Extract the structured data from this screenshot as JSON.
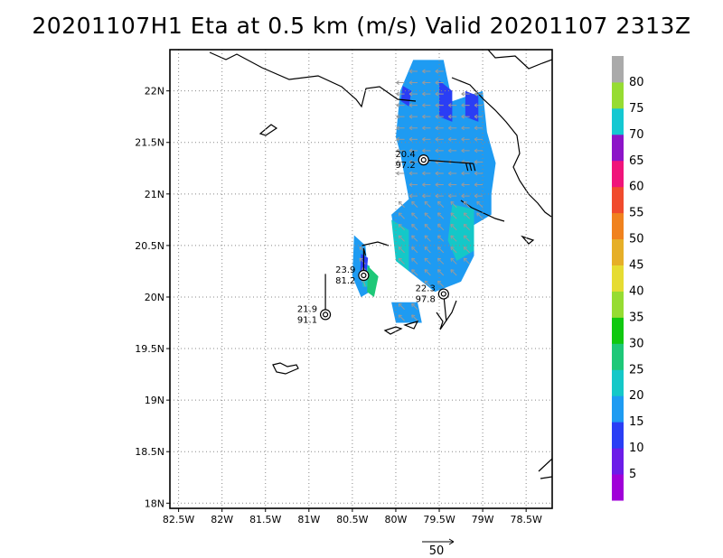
{
  "chart_data": {
    "type": "heatmap",
    "title": "20201107H1 Eta at 0.5 km (m/s) Valid 20201107  2313Z",
    "xlim": [
      -82.6,
      -78.2
    ],
    "ylim": [
      17.95,
      22.4
    ],
    "x_ticks": [
      {
        "value": -82.5,
        "label": "82.5W"
      },
      {
        "value": -82.0,
        "label": "82W"
      },
      {
        "value": -81.5,
        "label": "81.5W"
      },
      {
        "value": -81.0,
        "label": "81W"
      },
      {
        "value": -80.5,
        "label": "80.5W"
      },
      {
        "value": -80.0,
        "label": "80W"
      },
      {
        "value": -79.5,
        "label": "79.5W"
      },
      {
        "value": -79.0,
        "label": "79W"
      },
      {
        "value": -78.5,
        "label": "78.5W"
      }
    ],
    "y_ticks": [
      {
        "value": 18.0,
        "label": "18N"
      },
      {
        "value": 18.5,
        "label": "18.5N"
      },
      {
        "value": 19.0,
        "label": "19N"
      },
      {
        "value": 19.5,
        "label": "19.5N"
      },
      {
        "value": 20.0,
        "label": "20N"
      },
      {
        "value": 20.5,
        "label": "20.5N"
      },
      {
        "value": 21.0,
        "label": "21N"
      },
      {
        "value": 21.5,
        "label": "21.5N"
      },
      {
        "value": 22.0,
        "label": "22N"
      }
    ],
    "grid": true,
    "colorbar": {
      "bins": [
        {
          "max": 5,
          "color": "#a000d8"
        },
        {
          "max": 10,
          "color": "#6c1ce8"
        },
        {
          "max": 15,
          "color": "#2a3ef5"
        },
        {
          "max": 20,
          "color": "#1e9bf2"
        },
        {
          "max": 25,
          "color": "#14c8c8"
        },
        {
          "max": 30,
          "color": "#1ec878"
        },
        {
          "max": 35,
          "color": "#10c810"
        },
        {
          "max": 40,
          "color": "#96dc32"
        },
        {
          "max": 45,
          "color": "#e6dc32"
        },
        {
          "max": 50,
          "color": "#e6af28"
        },
        {
          "max": 55,
          "color": "#f0821e"
        },
        {
          "max": 60,
          "color": "#f04b2d"
        },
        {
          "max": 65,
          "color": "#f0147a"
        },
        {
          "max": 70,
          "color": "#8c14c8"
        },
        {
          "max": 75,
          "color": "#14c8d2"
        },
        {
          "max": 80,
          "color": "#96dc32"
        },
        {
          "max": 85,
          "color": "#aaaaaa"
        }
      ],
      "labels": [
        "5",
        "10",
        "15",
        "20",
        "25",
        "30",
        "35",
        "40",
        "45",
        "50",
        "55",
        "60",
        "65",
        "70",
        "75",
        "80"
      ]
    },
    "wind_field_regions": [
      {
        "level": 17,
        "polygon": [
          [
            -79.8,
            22.3
          ],
          [
            -79.45,
            22.3
          ],
          [
            -79.35,
            21.9
          ],
          [
            -79.0,
            22.0
          ],
          [
            -78.95,
            21.6
          ],
          [
            -78.85,
            21.3
          ],
          [
            -78.9,
            21.0
          ],
          [
            -78.9,
            20.8
          ],
          [
            -79.1,
            20.7
          ],
          [
            -79.1,
            20.4
          ],
          [
            -79.25,
            20.15
          ],
          [
            -79.55,
            20.05
          ],
          [
            -79.85,
            20.25
          ],
          [
            -80.0,
            20.55
          ],
          [
            -80.05,
            20.8
          ],
          [
            -79.85,
            20.95
          ],
          [
            -79.95,
            21.4
          ],
          [
            -80.0,
            21.55
          ],
          [
            -79.95,
            22.0
          ]
        ]
      },
      {
        "level": 12,
        "polygon": [
          [
            -79.5,
            22.1
          ],
          [
            -79.35,
            22.0
          ],
          [
            -79.35,
            21.7
          ],
          [
            -79.5,
            21.75
          ]
        ]
      },
      {
        "level": 12,
        "polygon": [
          [
            -79.2,
            22.0
          ],
          [
            -79.05,
            21.95
          ],
          [
            -79.05,
            21.7
          ],
          [
            -79.2,
            21.75
          ]
        ]
      },
      {
        "level": 12,
        "polygon": [
          [
            -79.92,
            22.05
          ],
          [
            -79.82,
            22.0
          ],
          [
            -79.85,
            21.85
          ],
          [
            -79.94,
            21.9
          ]
        ]
      },
      {
        "level": 22,
        "polygon": [
          [
            -79.35,
            20.9
          ],
          [
            -79.1,
            20.85
          ],
          [
            -79.1,
            20.45
          ],
          [
            -79.3,
            20.35
          ],
          [
            -79.4,
            20.55
          ]
        ]
      },
      {
        "level": 22,
        "polygon": [
          [
            -80.05,
            20.75
          ],
          [
            -79.85,
            20.65
          ],
          [
            -79.85,
            20.25
          ],
          [
            -80.0,
            20.35
          ]
        ]
      },
      {
        "level": 17,
        "polygon": [
          [
            -80.48,
            20.6
          ],
          [
            -80.35,
            20.5
          ],
          [
            -80.3,
            20.05
          ],
          [
            -80.4,
            20.0
          ],
          [
            -80.5,
            20.2
          ]
        ]
      },
      {
        "level": 22,
        "polygon": [
          [
            -80.4,
            20.35
          ],
          [
            -80.3,
            20.3
          ],
          [
            -80.3,
            20.1
          ],
          [
            -80.38,
            20.1
          ]
        ]
      },
      {
        "level": 27,
        "polygon": [
          [
            -80.32,
            20.3
          ],
          [
            -80.2,
            20.2
          ],
          [
            -80.25,
            20.0
          ],
          [
            -80.33,
            20.05
          ]
        ]
      },
      {
        "level": 12,
        "polygon": [
          [
            -80.4,
            20.42
          ],
          [
            -80.32,
            20.38
          ],
          [
            -80.34,
            20.2
          ],
          [
            -80.41,
            20.22
          ]
        ]
      },
      {
        "level": 17,
        "polygon": [
          [
            -80.05,
            19.95
          ],
          [
            -79.75,
            19.95
          ],
          [
            -79.7,
            19.75
          ],
          [
            -80.0,
            19.75
          ]
        ]
      }
    ],
    "stations": [
      {
        "lon": -79.68,
        "lat": 21.33,
        "speed": "20.4",
        "pressure": "97.2"
      },
      {
        "lon": -80.37,
        "lat": 20.21,
        "speed": "23.9",
        "pressure": "81.2"
      },
      {
        "lon": -80.81,
        "lat": 19.83,
        "speed": "21.9",
        "pressure": "91.1"
      },
      {
        "lon": -79.45,
        "lat": 20.03,
        "speed": "22.3",
        "pressure": "97.8"
      }
    ],
    "reference_vector_label": "50"
  }
}
